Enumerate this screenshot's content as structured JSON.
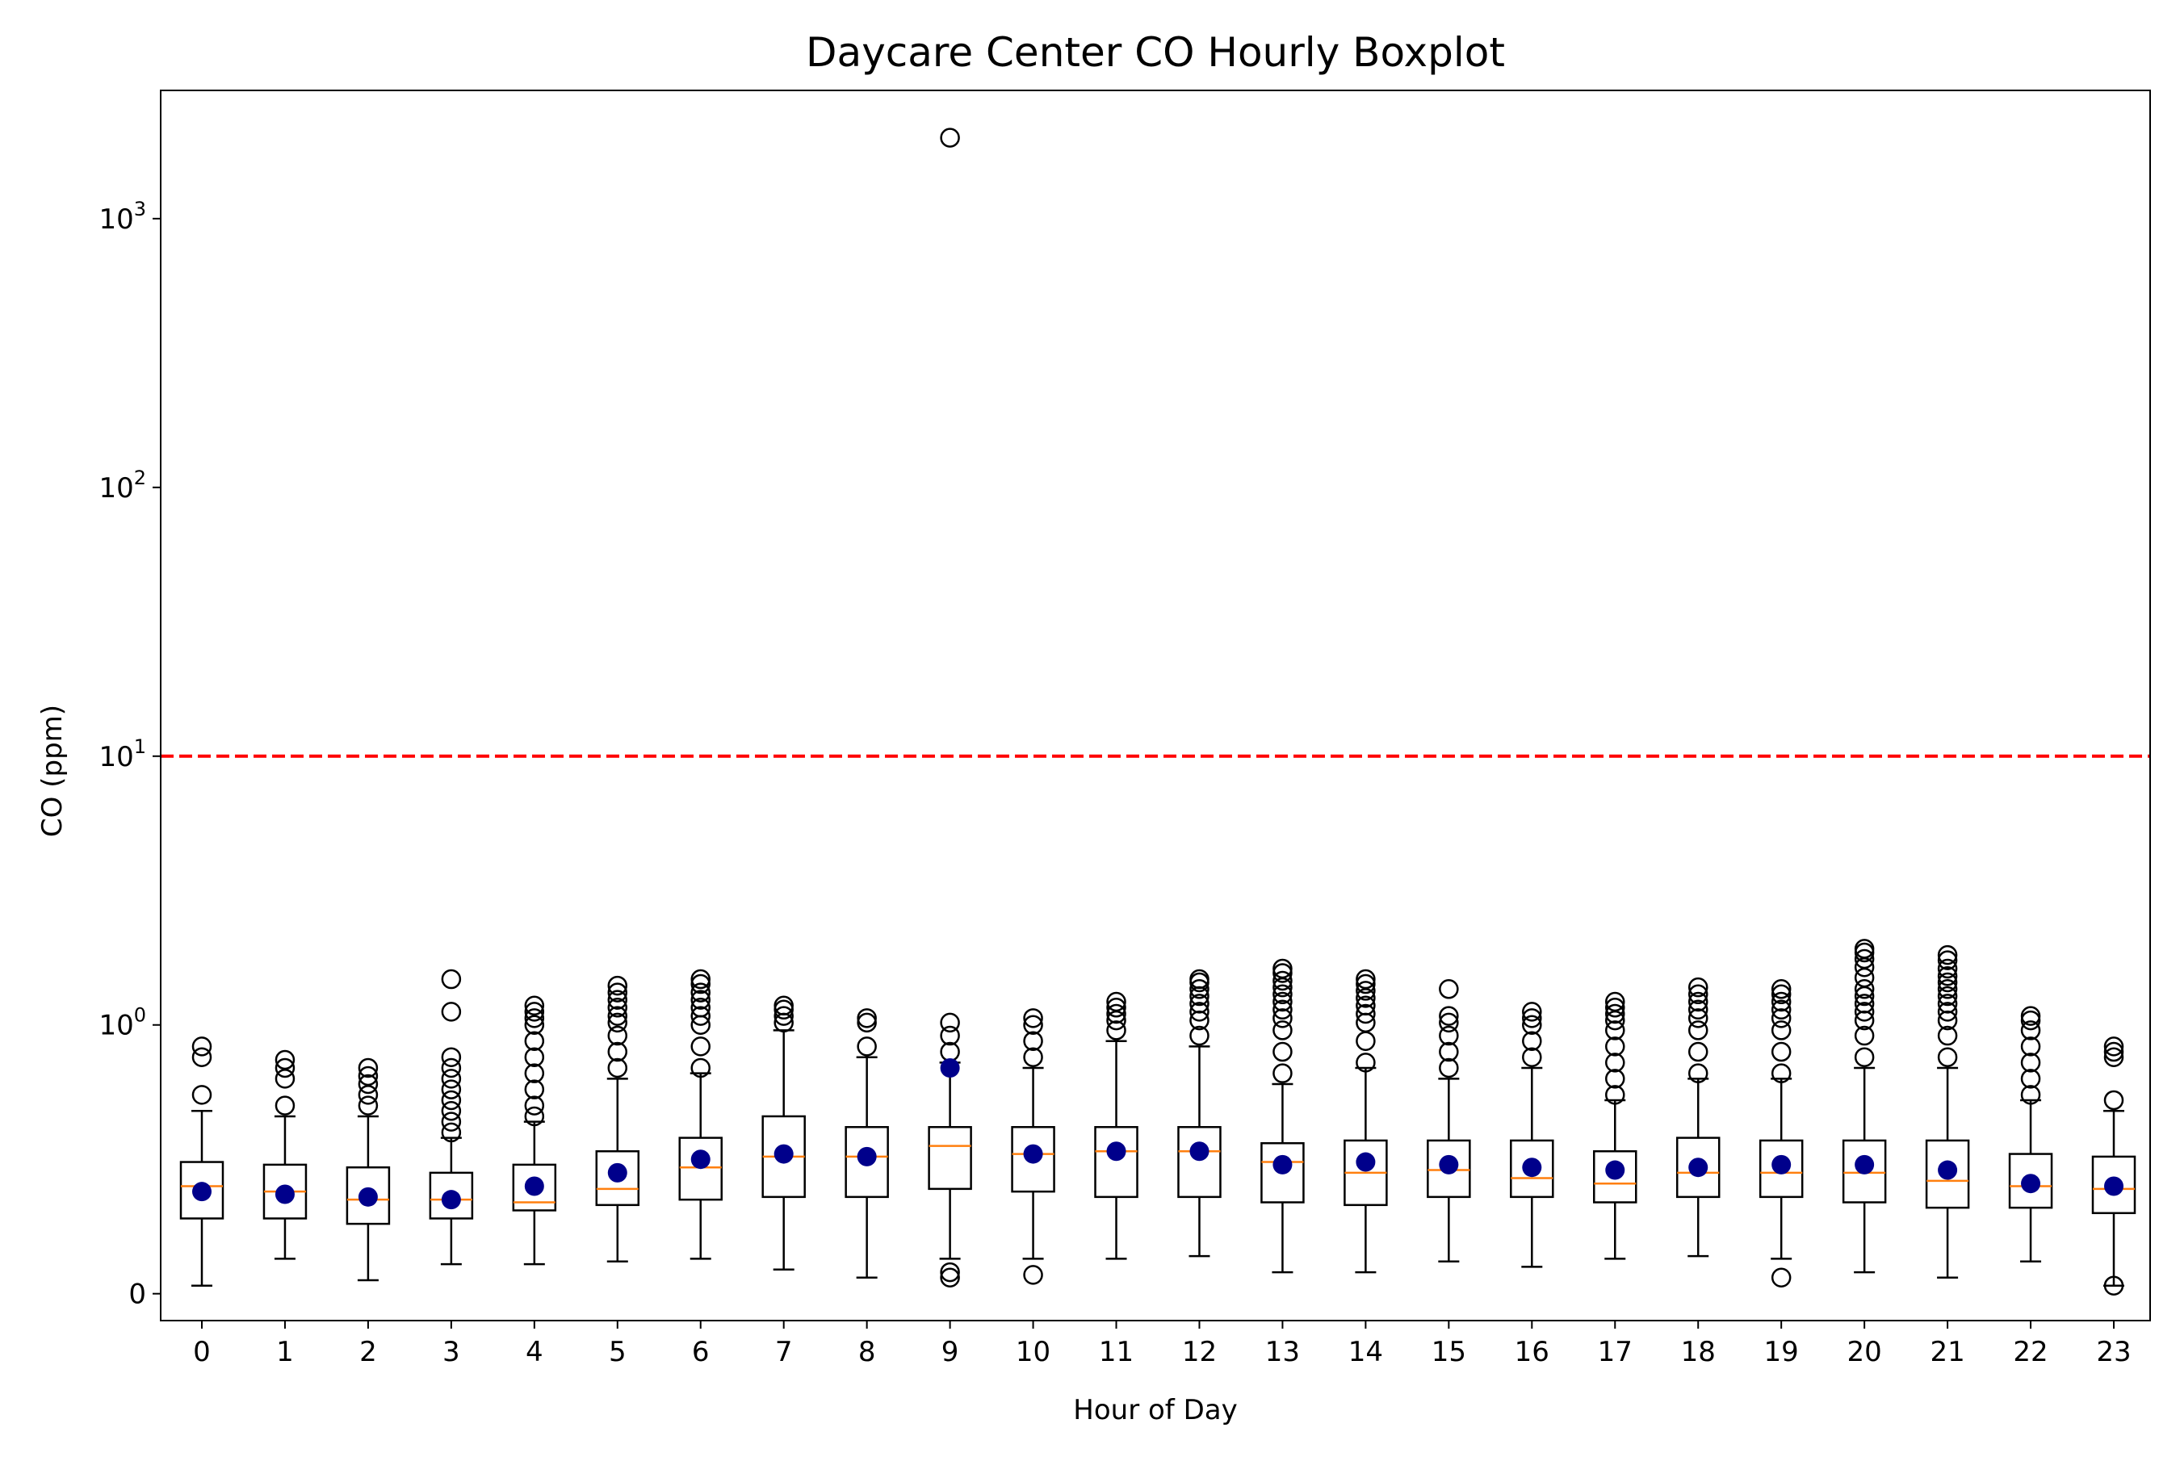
{
  "chart_data": {
    "type": "boxplot",
    "title": "Daycare Center CO Hourly Boxplot",
    "xlabel": "Hour of Day",
    "ylabel": "CO (ppm)",
    "yscale": "symlog",
    "ylim": [
      -0.1,
      3000
    ],
    "yticks": [
      {
        "value": 0,
        "base": "0",
        "exp": ""
      },
      {
        "value": 1,
        "base": "10",
        "exp": "0"
      },
      {
        "value": 10,
        "base": "10",
        "exp": "1"
      },
      {
        "value": 100,
        "base": "10",
        "exp": "2"
      },
      {
        "value": 1000,
        "base": "10",
        "exp": "3"
      }
    ],
    "threshold": {
      "value": 10,
      "color": "#ff0000",
      "style": "dashed"
    },
    "colors": {
      "median": "#ff7f0e",
      "mean": "#00008b",
      "box": "#000000",
      "threshold": "#ff0000"
    },
    "categories": [
      "0",
      "1",
      "2",
      "3",
      "4",
      "5",
      "6",
      "7",
      "8",
      "9",
      "10",
      "11",
      "12",
      "13",
      "14",
      "15",
      "16",
      "17",
      "18",
      "19",
      "20",
      "21",
      "22",
      "23"
    ],
    "boxes": [
      {
        "hour": "0",
        "whislo": 0.03,
        "q1": 0.28,
        "med": 0.4,
        "q3": 0.49,
        "whishi": 0.68,
        "mean": 0.38,
        "fliers": [
          0.74,
          0.88,
          0.92
        ]
      },
      {
        "hour": "1",
        "whislo": 0.13,
        "q1": 0.28,
        "med": 0.38,
        "q3": 0.48,
        "whishi": 0.66,
        "mean": 0.37,
        "fliers": [
          0.7,
          0.8,
          0.84,
          0.87
        ]
      },
      {
        "hour": "2",
        "whislo": 0.05,
        "q1": 0.26,
        "med": 0.35,
        "q3": 0.47,
        "whishi": 0.66,
        "mean": 0.36,
        "fliers": [
          0.7,
          0.74,
          0.78,
          0.81,
          0.84
        ]
      },
      {
        "hour": "3",
        "whislo": 0.11,
        "q1": 0.28,
        "med": 0.35,
        "q3": 0.45,
        "whishi": 0.58,
        "mean": 0.35,
        "fliers": [
          0.6,
          0.64,
          0.68,
          0.72,
          0.76,
          0.8,
          0.84,
          0.88,
          1.12,
          1.48
        ]
      },
      {
        "hour": "4",
        "whislo": 0.11,
        "q1": 0.31,
        "med": 0.34,
        "q3": 0.48,
        "whishi": 0.64,
        "mean": 0.4,
        "fliers": [
          0.66,
          0.7,
          0.76,
          0.82,
          0.88,
          0.94,
          1.0,
          1.06,
          1.12,
          1.18
        ]
      },
      {
        "hour": "5",
        "whislo": 0.12,
        "q1": 0.33,
        "med": 0.39,
        "q3": 0.53,
        "whishi": 0.8,
        "mean": 0.45,
        "fliers": [
          0.84,
          0.9,
          0.96,
          1.02,
          1.08,
          1.16,
          1.24,
          1.32,
          1.4
        ]
      },
      {
        "hour": "6",
        "whislo": 0.13,
        "q1": 0.35,
        "med": 0.47,
        "q3": 0.58,
        "whishi": 0.82,
        "mean": 0.5,
        "fliers": [
          0.84,
          0.92,
          1.0,
          1.08,
          1.16,
          1.24,
          1.32,
          1.42,
          1.48
        ]
      },
      {
        "hour": "7",
        "whislo": 0.09,
        "q1": 0.36,
        "med": 0.51,
        "q3": 0.66,
        "whishi": 0.98,
        "mean": 0.52,
        "fliers": [
          1.02,
          1.08,
          1.14,
          1.18
        ]
      },
      {
        "hour": "8",
        "whislo": 0.06,
        "q1": 0.36,
        "med": 0.51,
        "q3": 0.62,
        "whishi": 0.88,
        "mean": 0.51,
        "fliers": [
          0.92,
          1.02,
          1.06
        ]
      },
      {
        "hour": "9",
        "whislo": 0.13,
        "q1": 0.39,
        "med": 0.55,
        "q3": 0.62,
        "whishi": 0.86,
        "mean": 0.84,
        "fliers": [
          0.06,
          0.08,
          0.9,
          0.96,
          1.02,
          2000
        ]
      },
      {
        "hour": "10",
        "whislo": 0.13,
        "q1": 0.38,
        "med": 0.52,
        "q3": 0.62,
        "whishi": 0.84,
        "mean": 0.52,
        "fliers": [
          0.07,
          0.88,
          0.94,
          1.0,
          1.06
        ]
      },
      {
        "hour": "11",
        "whislo": 0.13,
        "q1": 0.36,
        "med": 0.53,
        "q3": 0.62,
        "whishi": 0.94,
        "mean": 0.53,
        "fliers": [
          0.98,
          1.04,
          1.1,
          1.16,
          1.22
        ]
      },
      {
        "hour": "12",
        "whislo": 0.14,
        "q1": 0.36,
        "med": 0.53,
        "q3": 0.62,
        "whishi": 0.92,
        "mean": 0.53,
        "fliers": [
          0.96,
          1.04,
          1.12,
          1.2,
          1.28,
          1.36,
          1.44,
          1.48
        ]
      },
      {
        "hour": "13",
        "whislo": 0.08,
        "q1": 0.34,
        "med": 0.49,
        "q3": 0.56,
        "whishi": 0.78,
        "mean": 0.48,
        "fliers": [
          0.82,
          0.9,
          0.98,
          1.06,
          1.14,
          1.22,
          1.3,
          1.38,
          1.46,
          1.56,
          1.62
        ]
      },
      {
        "hour": "14",
        "whislo": 0.08,
        "q1": 0.33,
        "med": 0.45,
        "q3": 0.57,
        "whishi": 0.84,
        "mean": 0.49,
        "fliers": [
          0.86,
          0.94,
          1.02,
          1.1,
          1.18,
          1.26,
          1.34,
          1.42,
          1.48
        ]
      },
      {
        "hour": "15",
        "whislo": 0.12,
        "q1": 0.36,
        "med": 0.46,
        "q3": 0.57,
        "whishi": 0.8,
        "mean": 0.48,
        "fliers": [
          0.84,
          0.9,
          0.96,
          1.02,
          1.08,
          1.36
        ]
      },
      {
        "hour": "16",
        "whislo": 0.1,
        "q1": 0.36,
        "med": 0.43,
        "q3": 0.57,
        "whishi": 0.84,
        "mean": 0.47,
        "fliers": [
          0.88,
          0.94,
          1.0,
          1.06,
          1.12
        ]
      },
      {
        "hour": "17",
        "whislo": 0.13,
        "q1": 0.34,
        "med": 0.41,
        "q3": 0.53,
        "whishi": 0.72,
        "mean": 0.46,
        "fliers": [
          0.74,
          0.8,
          0.86,
          0.92,
          0.98,
          1.04,
          1.1,
          1.16,
          1.22
        ]
      },
      {
        "hour": "18",
        "whislo": 0.14,
        "q1": 0.36,
        "med": 0.45,
        "q3": 0.58,
        "whishi": 0.8,
        "mean": 0.47,
        "fliers": [
          0.82,
          0.9,
          0.98,
          1.06,
          1.14,
          1.22,
          1.3,
          1.38
        ]
      },
      {
        "hour": "19",
        "whislo": 0.13,
        "q1": 0.36,
        "med": 0.45,
        "q3": 0.57,
        "whishi": 0.8,
        "mean": 0.48,
        "fliers": [
          0.06,
          0.82,
          0.9,
          0.98,
          1.06,
          1.14,
          1.22,
          1.3,
          1.36
        ]
      },
      {
        "hour": "20",
        "whislo": 0.08,
        "q1": 0.34,
        "med": 0.45,
        "q3": 0.57,
        "whishi": 0.84,
        "mean": 0.48,
        "fliers": [
          0.88,
          0.96,
          1.04,
          1.12,
          1.2,
          1.28,
          1.36,
          1.5,
          1.64,
          1.76,
          1.86,
          1.92
        ]
      },
      {
        "hour": "21",
        "whislo": 0.06,
        "q1": 0.32,
        "med": 0.42,
        "q3": 0.57,
        "whishi": 0.84,
        "mean": 0.46,
        "fliers": [
          0.88,
          0.96,
          1.04,
          1.12,
          1.2,
          1.28,
          1.36,
          1.44,
          1.52,
          1.62,
          1.74,
          1.82
        ]
      },
      {
        "hour": "22",
        "whislo": 0.12,
        "q1": 0.32,
        "med": 0.4,
        "q3": 0.52,
        "whishi": 0.72,
        "mean": 0.41,
        "fliers": [
          0.74,
          0.8,
          0.86,
          0.92,
          0.98,
          1.04,
          1.08
        ]
      },
      {
        "hour": "23",
        "whislo": 0.03,
        "q1": 0.3,
        "med": 0.39,
        "q3": 0.51,
        "whishi": 0.68,
        "mean": 0.4,
        "fliers": [
          0.03,
          0.72,
          0.88,
          0.9,
          0.92
        ]
      }
    ]
  }
}
